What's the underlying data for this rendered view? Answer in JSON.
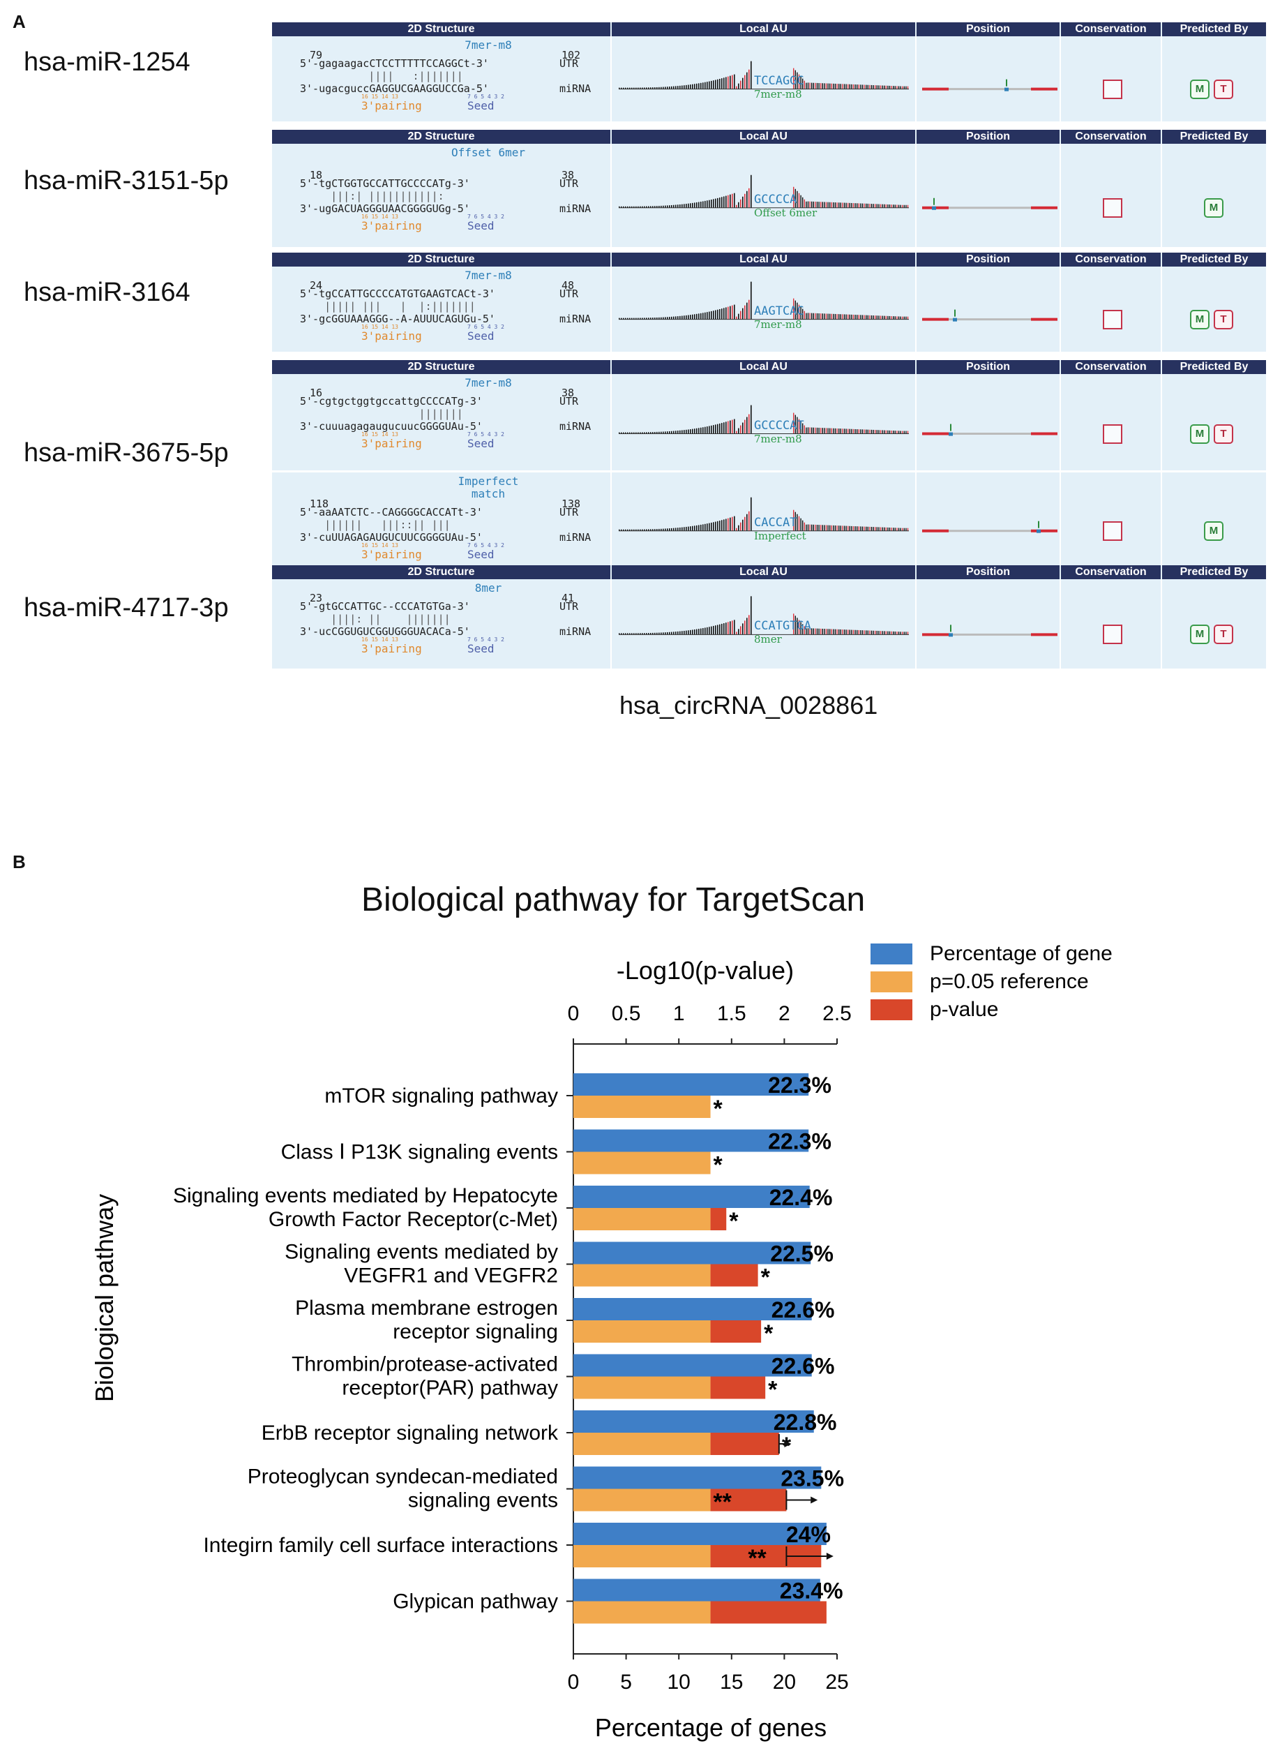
{
  "panel_a": {
    "letter": "A",
    "headers": [
      "2D Structure",
      "Local AU",
      "Position",
      "Conservation",
      "Predicted By"
    ],
    "caption": "hsa_circRNA_0028861",
    "sites": [
      {
        "mirna": "hsa-miR-1254",
        "start": "79",
        "end": "102",
        "site_type": "7mer-m8",
        "utr_seq": "5'-gagaagacCTCCTTTTTCCAGGCt-3'",
        "pairing": "          ||||   :|||||||",
        "mirna_seq": "3'-ugacguccGAGGUCGAAGGUCCGa-5'",
        "au_label": "TCCAGGC",
        "au_sub": "7mer-m8",
        "badges": [
          "M",
          "T"
        ]
      },
      {
        "mirna": "hsa-miR-3151-5p",
        "start": "18",
        "end": "38",
        "site_type": "Offset 6mer",
        "utr_seq": "5'-tgCTGGTGCCATTGCCCCATg-3'",
        "pairing": "    |||:| |||||||||||:",
        "mirna_seq": "3'-ugGACUAGGGUAACGGGGUGg-5'",
        "au_label": "GCCCCA",
        "au_sub": "Offset 6mer",
        "badges": [
          "M"
        ]
      },
      {
        "mirna": "hsa-miR-3164",
        "start": "24",
        "end": "48",
        "site_type": "7mer-m8",
        "utr_seq": "5'-tgCCATTGCCCCATGTGAAGTCACt-3'",
        "pairing": "   ||||| |||   |  |:|||||||",
        "mirna_seq": "3'-gcGGUAAAGGG--A-AUUUCAGUGu-5'",
        "au_label": "AAGTCAC",
        "au_sub": "7mer-m8",
        "badges": [
          "M",
          "T"
        ]
      },
      {
        "mirna": "hsa-miR-3675-5p",
        "start": "16",
        "end": "38",
        "site_type": "7mer-m8",
        "utr_seq": "5'-cgtgctggtgccattgCCCCATg-3'",
        "pairing": "                  |||||||",
        "mirna_seq": "3'-cuuuagagaugucuucGGGGUAu-5'",
        "au_label": "GCCCCAT",
        "au_sub": "7mer-m8",
        "badges": [
          "M",
          "T"
        ]
      },
      {
        "mirna": "",
        "start": "118",
        "end": "138",
        "site_type": "Imperfect match",
        "utr_seq": "5'-aaAATCTC--CAGGGGCACCATt-3'",
        "pairing": "   ||||||   |||::|| |||",
        "mirna_seq": "3'-cuUUAGAGAUGUCUUCGGGGUAu-5'",
        "au_label": "CACCAT",
        "au_sub": "Imperfect",
        "badges": [
          "M"
        ]
      },
      {
        "mirna": "hsa-miR-4717-3p",
        "start": "23",
        "end": "41",
        "site_type": "8mer",
        "utr_seq": "5'-gtGCCATTGC--CCCATGTGa-3'",
        "pairing": "    ||||: ||    |||||||",
        "mirna_seq": "3'-ucCGGUGUCGGUGGGUACACa-5'",
        "au_label": "CCATGTGA",
        "au_sub": "8mer",
        "badges": [
          "M",
          "T"
        ]
      }
    ],
    "utr_tag": "UTR",
    "mirna_tag": "miRNA",
    "pairing_tag": "3'pairing",
    "seed_tag": "Seed",
    "seed_numbers": "7 6 5 4 3 2",
    "pair_numbers": "16 15 14 13"
  },
  "panel_b": {
    "letter": "B",
    "chart_data": {
      "type": "bar",
      "title": "Biological pathway for TargetScan",
      "ylabel": "Biological pathway",
      "xlabel_bottom": "Percentage of  genes",
      "xlabel_top": "-Log10(p-value)",
      "xlim_bottom": [
        0,
        25
      ],
      "xticks_bottom": [
        "0",
        "5",
        "10",
        "15",
        "20",
        "25"
      ],
      "xlim_top": [
        0,
        2.5
      ],
      "xticks_top": [
        "0",
        "0.5",
        "1",
        "1.5",
        "2",
        "2.5"
      ],
      "legend": [
        "Percentage of gene",
        "p=0.05 reference",
        "p-value"
      ],
      "colors": {
        "percentage": "#3f7fc7",
        "reference": "#f2a94e",
        "pvalue": "#d9472a"
      },
      "categories": [
        [
          "mTOR signaling pathway"
        ],
        [
          "Class Ⅰ P13K signaling events"
        ],
        [
          "Signaling events mediated by Hepatocyte",
          "Growth Factor Receptor(c-Met)"
        ],
        [
          "Signaling events mediated by",
          "VEGFR1 and VEGFR2"
        ],
        [
          "Plasma membrane estrogen",
          "receptor signaling"
        ],
        [
          "Thrombin/protease-activated",
          "receptor(PAR) pathway"
        ],
        [
          "ErbB receptor signaling network"
        ],
        [
          "Proteoglycan syndecan-mediated",
          "signaling events"
        ],
        [
          "Integirn family cell surface interactions"
        ],
        [
          "Glypican pathway"
        ]
      ],
      "percentage": [
        22.3,
        22.3,
        22.4,
        22.5,
        22.6,
        22.6,
        22.8,
        23.5,
        24,
        23.4
      ],
      "percentage_labels": [
        "22.3%",
        "22.3%",
        "22.4%",
        "22.5%",
        "22.6%",
        "22.6%",
        "22.8%",
        "23.5%",
        "24%",
        "23.4%"
      ],
      "reference_log10p": 1.3,
      "log10p": [
        1.3,
        1.3,
        1.45,
        1.75,
        1.78,
        1.82,
        1.95,
        2.02,
        2.35,
        2.4
      ],
      "significance": [
        "*",
        "*",
        "*",
        "*",
        "*",
        "*",
        "*",
        "**",
        "**",
        ""
      ]
    }
  }
}
